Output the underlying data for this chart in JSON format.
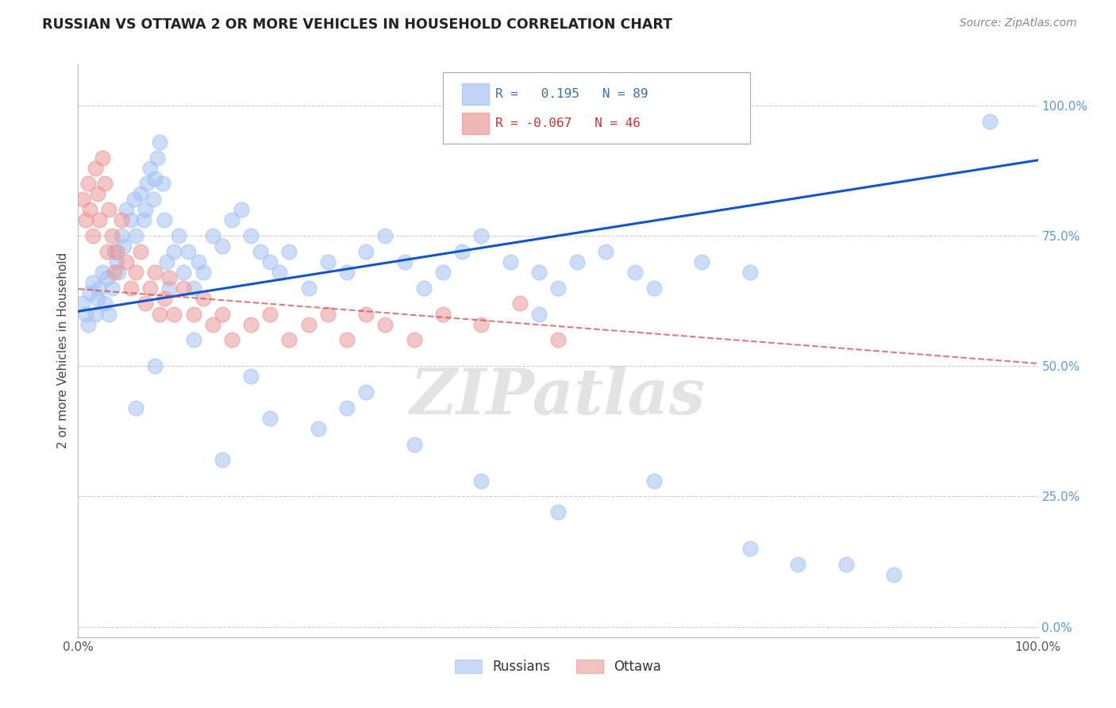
{
  "title": "RUSSIAN VS OTTAWA 2 OR MORE VEHICLES IN HOUSEHOLD CORRELATION CHART",
  "source": "Source: ZipAtlas.com",
  "ylabel": "2 or more Vehicles in Household",
  "xlim": [
    0.0,
    1.0
  ],
  "ylim": [
    -0.02,
    1.08
  ],
  "yticks": [
    0.0,
    0.25,
    0.5,
    0.75,
    1.0
  ],
  "ytick_labels": [
    "0.0%",
    "25.0%",
    "50.0%",
    "75.0%",
    "100.0%"
  ],
  "russian_color": "#a4c2f4",
  "ottawa_color": "#ea9999",
  "russian_line_color": "#1155cc",
  "ottawa_line_color": "#cc4444",
  "watermark": "ZIPatlas",
  "russians_x": [
    0.005,
    0.008,
    0.01,
    0.012,
    0.015,
    0.018,
    0.02,
    0.022,
    0.025,
    0.028,
    0.03,
    0.032,
    0.035,
    0.038,
    0.04,
    0.042,
    0.045,
    0.048,
    0.05,
    0.055,
    0.058,
    0.06,
    0.065,
    0.068,
    0.07,
    0.072,
    0.075,
    0.078,
    0.08,
    0.082,
    0.085,
    0.088,
    0.09,
    0.092,
    0.095,
    0.1,
    0.105,
    0.11,
    0.115,
    0.12,
    0.125,
    0.13,
    0.14,
    0.15,
    0.16,
    0.17,
    0.18,
    0.19,
    0.2,
    0.21,
    0.22,
    0.24,
    0.26,
    0.28,
    0.3,
    0.32,
    0.34,
    0.36,
    0.38,
    0.4,
    0.42,
    0.45,
    0.48,
    0.5,
    0.52,
    0.55,
    0.58,
    0.6,
    0.65,
    0.7,
    0.28,
    0.18,
    0.12,
    0.08,
    0.06,
    0.2,
    0.15,
    0.25,
    0.3,
    0.35,
    0.42,
    0.5,
    0.6,
    0.7,
    0.75,
    0.8,
    0.85,
    0.95,
    0.48
  ],
  "russians_y": [
    0.62,
    0.6,
    0.58,
    0.64,
    0.66,
    0.6,
    0.63,
    0.65,
    0.68,
    0.62,
    0.67,
    0.6,
    0.65,
    0.72,
    0.7,
    0.68,
    0.75,
    0.73,
    0.8,
    0.78,
    0.82,
    0.75,
    0.83,
    0.78,
    0.8,
    0.85,
    0.88,
    0.82,
    0.86,
    0.9,
    0.93,
    0.85,
    0.78,
    0.7,
    0.65,
    0.72,
    0.75,
    0.68,
    0.72,
    0.65,
    0.7,
    0.68,
    0.75,
    0.73,
    0.78,
    0.8,
    0.75,
    0.72,
    0.7,
    0.68,
    0.72,
    0.65,
    0.7,
    0.68,
    0.72,
    0.75,
    0.7,
    0.65,
    0.68,
    0.72,
    0.75,
    0.7,
    0.68,
    0.65,
    0.7,
    0.72,
    0.68,
    0.65,
    0.7,
    0.68,
    0.42,
    0.48,
    0.55,
    0.5,
    0.42,
    0.4,
    0.32,
    0.38,
    0.45,
    0.35,
    0.28,
    0.22,
    0.28,
    0.15,
    0.12,
    0.12,
    0.1,
    0.97,
    0.6
  ],
  "ottawa_x": [
    0.005,
    0.008,
    0.01,
    0.012,
    0.015,
    0.018,
    0.02,
    0.022,
    0.025,
    0.028,
    0.03,
    0.032,
    0.035,
    0.038,
    0.04,
    0.045,
    0.05,
    0.055,
    0.06,
    0.065,
    0.07,
    0.075,
    0.08,
    0.085,
    0.09,
    0.095,
    0.1,
    0.11,
    0.12,
    0.13,
    0.14,
    0.15,
    0.16,
    0.18,
    0.2,
    0.22,
    0.24,
    0.26,
    0.28,
    0.3,
    0.32,
    0.35,
    0.38,
    0.42,
    0.46,
    0.5
  ],
  "ottawa_y": [
    0.82,
    0.78,
    0.85,
    0.8,
    0.75,
    0.88,
    0.83,
    0.78,
    0.9,
    0.85,
    0.72,
    0.8,
    0.75,
    0.68,
    0.72,
    0.78,
    0.7,
    0.65,
    0.68,
    0.72,
    0.62,
    0.65,
    0.68,
    0.6,
    0.63,
    0.67,
    0.6,
    0.65,
    0.6,
    0.63,
    0.58,
    0.6,
    0.55,
    0.58,
    0.6,
    0.55,
    0.58,
    0.6,
    0.55,
    0.6,
    0.58,
    0.55,
    0.6,
    0.58,
    0.62,
    0.55
  ]
}
